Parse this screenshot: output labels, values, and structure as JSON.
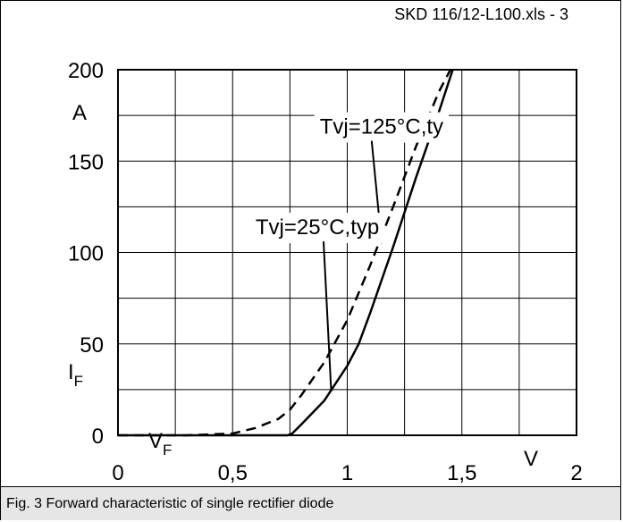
{
  "header": {
    "file_label": "SKD 116/12-L100.xls - 3"
  },
  "caption": {
    "text": "Fig. 3 Forward characteristic of single rectifier diode"
  },
  "chart_data": {
    "type": "line",
    "title": "",
    "xlabel": "V_F",
    "ylabel": "I_F",
    "x_unit": "V",
    "y_unit": "A",
    "xlim": [
      0,
      2
    ],
    "ylim": [
      0,
      200
    ],
    "x_ticks": [
      0,
      0.25,
      0.5,
      0.75,
      1,
      1.25,
      1.5,
      1.75,
      2
    ],
    "y_ticks": [
      0,
      25,
      50,
      75,
      100,
      125,
      150,
      175,
      200
    ],
    "x_tick_labels": [
      "0",
      "0,5",
      "1",
      "1,5",
      "2"
    ],
    "x_tick_label_values": [
      0,
      0.5,
      1,
      1.5,
      2
    ],
    "y_tick_labels": [
      "0",
      "50",
      "100",
      "150",
      "200"
    ],
    "y_tick_label_values": [
      0,
      50,
      100,
      150,
      200
    ],
    "grid": true,
    "series": [
      {
        "name": "Tvj=125°C,typ",
        "style": "dashed",
        "x": [
          0,
          0.3,
          0.5,
          0.6,
          0.7,
          0.75,
          0.8,
          0.9,
          1.0,
          1.1,
          1.2,
          1.3,
          1.4,
          1.45
        ],
        "y": [
          0,
          0,
          1,
          4,
          9,
          14,
          22,
          40,
          63,
          93,
          125,
          158,
          188,
          200
        ]
      },
      {
        "name": "Tvj=25°C,typ",
        "style": "solid",
        "x": [
          0,
          0.74,
          0.76,
          0.8,
          0.9,
          1.0,
          1.05,
          1.1,
          1.2,
          1.3,
          1.4,
          1.46
        ],
        "y": [
          0,
          0,
          1,
          6,
          19,
          38,
          50,
          67,
          103,
          141,
          177,
          200
        ]
      }
    ],
    "annotations": [
      {
        "text": "Tvj=125°C,ty",
        "series": "Tvj=125°C,typ",
        "label_x": 0.88,
        "label_y": 165,
        "target_x": 1.15,
        "target_y": 105
      },
      {
        "text": "Tvj=25°C,typ",
        "series": "Tvj=25°C,typ",
        "label_x": 0.6,
        "label_y": 110,
        "target_x": 0.93,
        "target_y": 24
      }
    ]
  }
}
